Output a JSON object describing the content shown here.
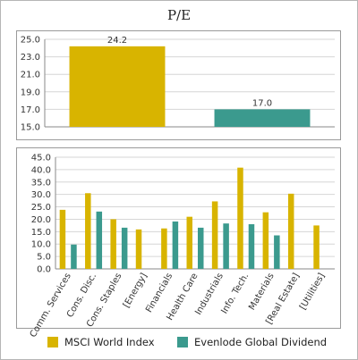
{
  "title": "P/E",
  "colors": {
    "msci": "#d8b400",
    "evenlode": "#3b9a8e"
  },
  "legend": [
    "MSCI World Index",
    "Evenlode Global Dividend"
  ],
  "chart_data": [
    {
      "type": "bar",
      "title": "P/E",
      "categories": [
        "MSCI World Index",
        "Evenlode Global Dividend"
      ],
      "values": [
        24.2,
        17.0
      ],
      "value_labels": [
        "24.2",
        "17.0"
      ],
      "ylim": [
        15.0,
        25.0
      ],
      "yticks": [
        "15.0",
        "17.0",
        "19.0",
        "21.0",
        "23.0",
        "25.0"
      ],
      "grid": true
    },
    {
      "type": "bar",
      "categories": [
        "Comm. Services",
        "Cons. Disc.",
        "Cons. Staples",
        "[Energy]",
        "Financials",
        "Health Care",
        "Industrials",
        "Info. Tech.",
        "Materials",
        "[Real Estate]",
        "[Utilities]"
      ],
      "series": [
        {
          "name": "MSCI World Index",
          "values": [
            23.8,
            30.5,
            20.0,
            15.9,
            16.3,
            21.0,
            27.2,
            40.8,
            22.8,
            30.3,
            17.5
          ]
        },
        {
          "name": "Evenlode Global Dividend",
          "values": [
            9.8,
            23.1,
            16.6,
            null,
            19.1,
            16.6,
            18.3,
            18.0,
            13.5,
            null,
            null
          ]
        }
      ],
      "ylim": [
        0,
        45
      ],
      "yticks": [
        "0.0",
        "5.0",
        "10.0",
        "15.0",
        "20.0",
        "25.0",
        "30.0",
        "35.0",
        "40.0",
        "45.0"
      ],
      "grid": true,
      "legend": "bottom"
    }
  ]
}
